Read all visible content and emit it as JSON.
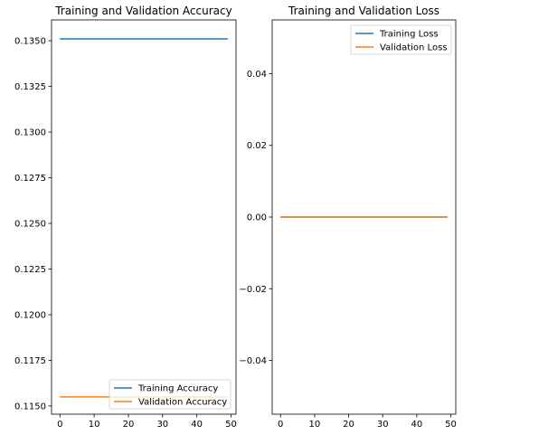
{
  "chart_data": [
    {
      "type": "line",
      "title": "Training and Validation Accuracy",
      "xlabel": "",
      "ylabel": "",
      "xlim": [
        -2.45,
        51.45
      ],
      "ylim": [
        0.11455,
        0.13614
      ],
      "xticks": [
        0,
        10,
        20,
        30,
        40,
        50
      ],
      "xtick_labels": [
        "0",
        "10",
        "20",
        "30",
        "40",
        "50"
      ],
      "yticks": [
        0.115,
        0.1175,
        0.12,
        0.1225,
        0.125,
        0.1275,
        0.13,
        0.1325,
        0.135
      ],
      "ytick_labels": [
        "0.1150",
        "0.1175",
        "0.1200",
        "0.1225",
        "0.1250",
        "0.1275",
        "0.1300",
        "0.1325",
        "0.1350"
      ],
      "grid": false,
      "legend": "lower-right",
      "series": [
        {
          "name": "Training Accuracy",
          "color": "#1f77b4",
          "x": [
            0,
            49
          ],
          "y": [
            0.1351,
            0.1351
          ]
        },
        {
          "name": "Validation Accuracy",
          "color": "#ff7f0e",
          "x": [
            0,
            49
          ],
          "y": [
            0.1155,
            0.1155
          ]
        }
      ]
    },
    {
      "type": "line",
      "title": "Training and Validation Loss",
      "xlabel": "",
      "ylabel": "",
      "xlim": [
        -2.45,
        51.45
      ],
      "ylim": [
        -0.055,
        0.055
      ],
      "xticks": [
        0,
        10,
        20,
        30,
        40,
        50
      ],
      "xtick_labels": [
        "0",
        "10",
        "20",
        "30",
        "40",
        "50"
      ],
      "yticks": [
        -0.04,
        -0.02,
        0.0,
        0.02,
        0.04
      ],
      "ytick_labels": [
        "−0.04",
        "−0.02",
        "0.00",
        "0.02",
        "0.04"
      ],
      "grid": false,
      "legend": "upper-right",
      "series": [
        {
          "name": "Training Loss",
          "color": "#1f77b4",
          "x": [
            0,
            49
          ],
          "y": [
            0.0,
            0.0
          ]
        },
        {
          "name": "Validation Loss",
          "color": "#ff7f0e",
          "x": [
            0,
            49
          ],
          "y": [
            0.0,
            0.0
          ]
        }
      ]
    }
  ]
}
